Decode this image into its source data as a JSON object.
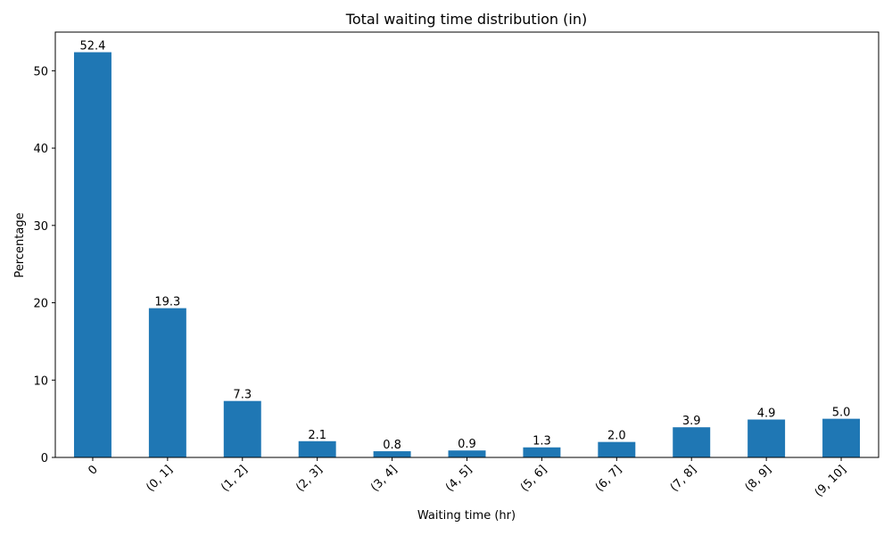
{
  "chart_data": {
    "type": "bar",
    "title": "Total waiting time distribution (in)",
    "xlabel": "Waiting time (hr)",
    "ylabel": "Percentage",
    "categories": [
      "0",
      "(0, 1]",
      "(1, 2]",
      "(2, 3]",
      "(3, 4]",
      "(4, 5]",
      "(5, 6]",
      "(6, 7]",
      "(7, 8]",
      "(8, 9]",
      "(9, 10]"
    ],
    "values": [
      52.4,
      19.3,
      7.3,
      2.1,
      0.8,
      0.9,
      1.3,
      2.0,
      3.9,
      4.9,
      5.0
    ],
    "value_labels": [
      "52.4",
      "19.3",
      "7.3",
      "2.1",
      "0.8",
      "0.9",
      "1.3",
      "2.0",
      "3.9",
      "4.9",
      "5.0"
    ],
    "ylim": [
      0,
      55
    ],
    "yticks": [
      0,
      10,
      20,
      30,
      40,
      50
    ],
    "bar_color": "#1f77b4",
    "grid": false,
    "legend": "none"
  }
}
